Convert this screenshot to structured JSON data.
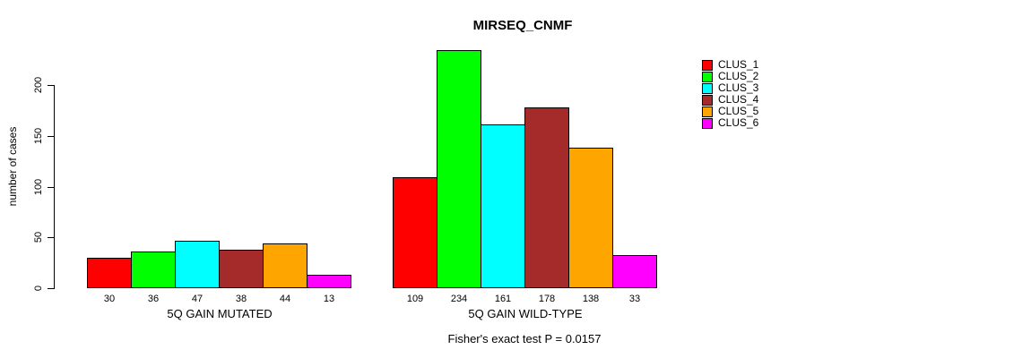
{
  "chart_data": {
    "type": "bar",
    "title": "MIRSEQ_CNMF",
    "ylabel": "number of cases",
    "xlabel": "",
    "yticks": [
      0,
      50,
      100,
      150,
      200
    ],
    "ylim": [
      0,
      240
    ],
    "grid": false,
    "legend_position": "right",
    "bar_borders": "#000000",
    "groups": [
      {
        "label": "5Q GAIN MUTATED",
        "values": [
          30,
          36,
          47,
          38,
          44,
          13
        ]
      },
      {
        "label": "5Q GAIN WILD-TYPE",
        "values": [
          109,
          234,
          161,
          178,
          138,
          33
        ]
      }
    ],
    "series": [
      {
        "name": "CLUS_1",
        "color": "#FF0000",
        "values": [
          30,
          109
        ]
      },
      {
        "name": "CLUS_2",
        "color": "#00FF00",
        "values": [
          36,
          234
        ]
      },
      {
        "name": "CLUS_3",
        "color": "#00FFFF",
        "values": [
          47,
          161
        ]
      },
      {
        "name": "CLUS_4",
        "color": "#A52A2A",
        "values": [
          38,
          178
        ]
      },
      {
        "name": "CLUS_5",
        "color": "#FFA500",
        "values": [
          44,
          138
        ]
      },
      {
        "name": "CLUS_6",
        "color": "#FF00FF",
        "values": [
          13,
          33
        ]
      }
    ],
    "legend": [
      {
        "label": "CLUS_1",
        "color": "#FF0000"
      },
      {
        "label": "CLUS_2",
        "color": "#00FF00"
      },
      {
        "label": "CLUS_3",
        "color": "#00FFFF"
      },
      {
        "label": "CLUS_4",
        "color": "#A52A2A"
      },
      {
        "label": "CLUS_5",
        "color": "#FFA500"
      },
      {
        "label": "CLUS_6",
        "color": "#FF00FF"
      }
    ],
    "annotation": "Fisher's exact test P = 0.0157"
  }
}
